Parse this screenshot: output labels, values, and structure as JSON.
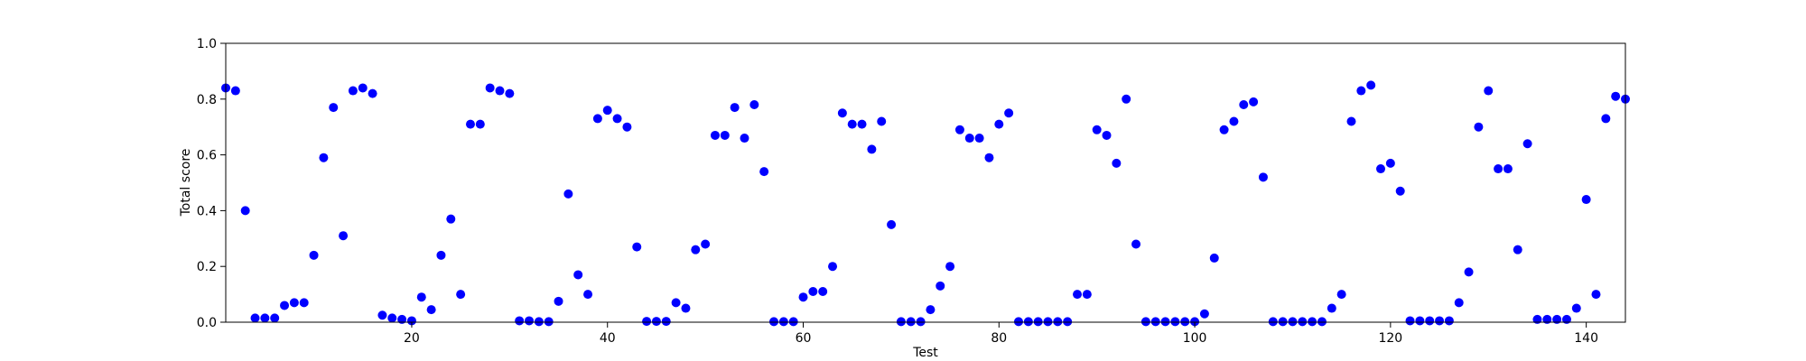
{
  "chart_data": {
    "type": "scatter",
    "xlabel": "Test",
    "ylabel": "Total score",
    "xlim": [
      1,
      144
    ],
    "ylim": [
      0.0,
      1.0
    ],
    "x_ticks": [
      20,
      40,
      60,
      80,
      100,
      120,
      140
    ],
    "x_tick_labels": [
      "20",
      "40",
      "60",
      "80",
      "100",
      "120",
      "140"
    ],
    "y_ticks": [
      0.0,
      0.2,
      0.4,
      0.6,
      0.8,
      1.0
    ],
    "y_tick_labels": [
      "0.0",
      "0.2",
      "0.4",
      "0.6",
      "0.8",
      "1.0"
    ],
    "grid": false,
    "marker_color": "#0000ff",
    "x": [
      1,
      2,
      3,
      4,
      5,
      6,
      7,
      8,
      9,
      10,
      11,
      12,
      13,
      14,
      15,
      16,
      17,
      18,
      19,
      20,
      21,
      22,
      23,
      24,
      25,
      26,
      27,
      28,
      29,
      30,
      31,
      32,
      33,
      34,
      35,
      36,
      37,
      38,
      39,
      40,
      41,
      42,
      43,
      44,
      45,
      46,
      47,
      48,
      49,
      50,
      51,
      52,
      53,
      54,
      55,
      56,
      57,
      58,
      59,
      60,
      61,
      62,
      63,
      64,
      65,
      66,
      67,
      68,
      69,
      70,
      71,
      72,
      73,
      74,
      75,
      76,
      77,
      78,
      79,
      80,
      81,
      82,
      83,
      84,
      85,
      86,
      87,
      88,
      89,
      90,
      91,
      92,
      93,
      94,
      95,
      96,
      97,
      98,
      99,
      100,
      101,
      102,
      103,
      104,
      105,
      106,
      107,
      108,
      109,
      110,
      111,
      112,
      113,
      114,
      115,
      116,
      117,
      118,
      119,
      120,
      121,
      122,
      123,
      124,
      125,
      126,
      127,
      128,
      129,
      130,
      131,
      132,
      133,
      134,
      135,
      136,
      137,
      138,
      139,
      140,
      141,
      142,
      143,
      144
    ],
    "y": [
      0.84,
      0.83,
      0.4,
      0.015,
      0.015,
      0.015,
      0.06,
      0.07,
      0.07,
      0.24,
      0.59,
      0.77,
      0.31,
      0.83,
      0.84,
      0.82,
      0.025,
      0.015,
      0.01,
      0.005,
      0.09,
      0.045,
      0.24,
      0.37,
      0.1,
      0.71,
      0.71,
      0.84,
      0.83,
      0.82,
      0.005,
      0.005,
      0.002,
      0.002,
      0.075,
      0.46,
      0.17,
      0.1,
      0.73,
      0.76,
      0.73,
      0.7,
      0.27,
      0.003,
      0.003,
      0.003,
      0.07,
      0.05,
      0.26,
      0.28,
      0.67,
      0.67,
      0.77,
      0.66,
      0.78,
      0.54,
      0.002,
      0.002,
      0.002,
      0.09,
      0.11,
      0.11,
      0.2,
      0.75,
      0.71,
      0.71,
      0.62,
      0.72,
      0.35,
      0.002,
      0.002,
      0.002,
      0.045,
      0.13,
      0.2,
      0.69,
      0.66,
      0.66,
      0.59,
      0.71,
      0.75,
      0.002,
      0.002,
      0.002,
      0.002,
      0.002,
      0.002,
      0.1,
      0.1,
      0.69,
      0.67,
      0.57,
      0.8,
      0.28,
      0.002,
      0.002,
      0.002,
      0.002,
      0.002,
      0.002,
      0.03,
      0.23,
      0.69,
      0.72,
      0.78,
      0.79,
      0.52,
      0.002,
      0.002,
      0.002,
      0.002,
      0.002,
      0.002,
      0.05,
      0.1,
      0.72,
      0.83,
      0.85,
      0.55,
      0.57,
      0.47,
      0.005,
      0.005,
      0.005,
      0.005,
      0.005,
      0.07,
      0.18,
      0.7,
      0.83,
      0.55,
      0.55,
      0.26,
      0.64,
      0.01,
      0.01,
      0.01,
      0.01,
      0.05,
      0.44,
      0.1,
      0.73,
      0.81,
      0.8
    ]
  }
}
